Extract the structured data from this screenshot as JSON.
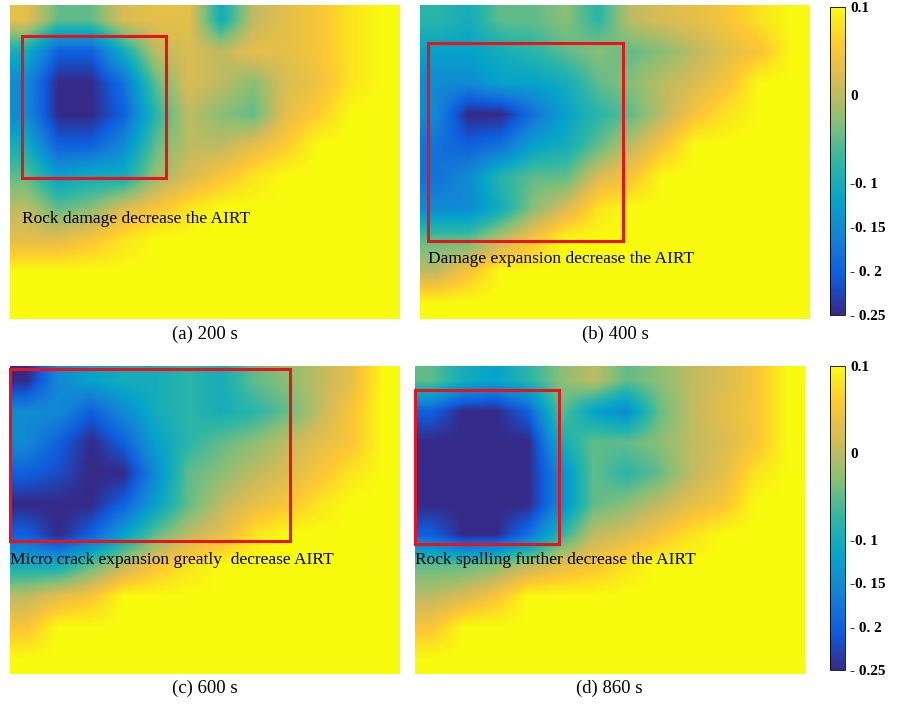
{
  "chart_data": [
    {
      "type": "heatmap",
      "title": "(a) 200 s",
      "annotation": "Rock damage decrease the AIRT",
      "tick_labels": false,
      "cells": [
        [
          0.03,
          -0.05,
          -0.05,
          0.02,
          0.03,
          0.03,
          -0.1,
          0.0,
          0.03,
          0.05,
          0.08,
          0.1
        ],
        [
          -0.1,
          -0.2,
          -0.2,
          -0.1,
          0.0,
          0.02,
          0.0,
          0.03,
          0.03,
          0.05,
          0.08,
          0.1
        ],
        [
          -0.15,
          -0.25,
          -0.25,
          -0.18,
          -0.05,
          0.02,
          0.0,
          -0.03,
          0.02,
          0.04,
          0.08,
          0.1
        ],
        [
          -0.15,
          -0.25,
          -0.25,
          -0.2,
          -0.08,
          0.0,
          -0.03,
          -0.05,
          0.03,
          0.06,
          0.1,
          0.1
        ],
        [
          -0.1,
          -0.2,
          -0.2,
          -0.15,
          -0.05,
          0.0,
          0.0,
          0.03,
          0.06,
          0.1,
          0.1,
          0.1
        ],
        [
          -0.05,
          -0.12,
          -0.1,
          -0.1,
          -0.02,
          0.02,
          0.05,
          0.08,
          0.1,
          0.1,
          0.1,
          0.1
        ],
        [
          0.0,
          -0.05,
          -0.03,
          0.02,
          0.05,
          0.08,
          0.1,
          0.1,
          0.1,
          0.1,
          0.1,
          0.1
        ],
        [
          0.03,
          0.03,
          0.05,
          0.08,
          0.1,
          0.1,
          0.1,
          0.1,
          0.1,
          0.1,
          0.1,
          0.1
        ],
        [
          0.1,
          0.1,
          0.1,
          0.1,
          0.1,
          0.1,
          0.1,
          0.1,
          0.1,
          0.1,
          0.1,
          0.1
        ],
        [
          0.1,
          0.1,
          0.1,
          0.1,
          0.1,
          0.1,
          0.1,
          0.1,
          0.1,
          0.1,
          0.1,
          0.1
        ]
      ]
    },
    {
      "type": "heatmap",
      "title": "(b) 400 s",
      "annotation": "Damage expansion decrease the AIRT",
      "tick_labels": false,
      "cells": [
        [
          -0.08,
          -0.1,
          -0.05,
          -0.05,
          -0.03,
          -0.08,
          0.0,
          0.02,
          0.03,
          0.05,
          0.08,
          0.1
        ],
        [
          -0.12,
          -0.12,
          -0.1,
          -0.08,
          -0.05,
          -0.03,
          -0.05,
          -0.03,
          0.0,
          0.03,
          0.05,
          0.1
        ],
        [
          -0.15,
          -0.15,
          -0.12,
          -0.12,
          -0.1,
          -0.05,
          -0.03,
          0.0,
          0.02,
          0.05,
          0.1,
          0.1
        ],
        [
          -0.15,
          -0.25,
          -0.25,
          -0.18,
          -0.12,
          -0.08,
          -0.05,
          0.0,
          0.05,
          0.08,
          0.1,
          0.1
        ],
        [
          -0.18,
          -0.2,
          -0.18,
          -0.12,
          -0.1,
          -0.05,
          0.0,
          0.05,
          0.1,
          0.1,
          0.1,
          0.1
        ],
        [
          -0.18,
          -0.15,
          -0.08,
          -0.05,
          -0.05,
          0.02,
          0.05,
          0.1,
          0.1,
          0.1,
          0.1,
          0.1
        ],
        [
          -0.15,
          -0.15,
          -0.1,
          -0.03,
          0.02,
          0.08,
          0.1,
          0.1,
          0.1,
          0.1,
          0.1,
          0.1
        ],
        [
          -0.05,
          -0.05,
          0.0,
          0.05,
          0.1,
          0.1,
          0.1,
          0.1,
          0.1,
          0.1,
          0.1,
          0.1
        ],
        [
          0.0,
          0.05,
          0.1,
          0.1,
          0.1,
          0.1,
          0.1,
          0.1,
          0.1,
          0.1,
          0.1,
          0.1
        ],
        [
          0.1,
          0.1,
          0.1,
          0.1,
          0.1,
          0.1,
          0.1,
          0.1,
          0.1,
          0.1,
          0.1,
          0.1
        ]
      ],
      "colorbar": {
        "range": [
          -0.25,
          0.1
        ],
        "ticks": [
          0.1,
          0,
          {
            "value": -0.1,
            "label": "-0. 1"
          },
          {
            "value": -0.15,
            "label": "-0. 15"
          },
          {
            "value": -0.2,
            "label": "- 0. 2"
          },
          {
            "value": -0.25,
            "label": "- 0.25"
          }
        ]
      }
    },
    {
      "type": "heatmap",
      "title": "(c) 600 s",
      "annotation": "Micro crack expansion greatly  decrease AIRT",
      "tick_labels": false,
      "cells": [
        [
          -0.25,
          -0.15,
          -0.12,
          -0.1,
          -0.1,
          -0.08,
          -0.1,
          -0.05,
          -0.03,
          0.0,
          0.03,
          0.1
        ],
        [
          -0.15,
          -0.15,
          -0.2,
          -0.15,
          -0.1,
          -0.08,
          -0.1,
          -0.08,
          -0.05,
          0.0,
          0.05,
          0.1
        ],
        [
          -0.15,
          -0.2,
          -0.25,
          -0.2,
          -0.12,
          -0.08,
          -0.05,
          -0.03,
          0.0,
          0.03,
          0.05,
          0.1
        ],
        [
          -0.2,
          -0.22,
          -0.25,
          -0.25,
          -0.15,
          -0.05,
          -0.03,
          0.0,
          0.02,
          0.05,
          0.08,
          0.1
        ],
        [
          -0.25,
          -0.25,
          -0.25,
          -0.2,
          -0.12,
          -0.05,
          0.0,
          0.03,
          0.05,
          0.08,
          0.1,
          0.1
        ],
        [
          -0.2,
          -0.25,
          -0.2,
          -0.12,
          -0.05,
          0.0,
          0.03,
          0.08,
          0.1,
          0.1,
          0.1,
          0.1
        ],
        [
          -0.1,
          -0.1,
          -0.05,
          0.0,
          0.05,
          0.08,
          0.1,
          0.1,
          0.1,
          0.1,
          0.1,
          0.1
        ],
        [
          0.0,
          0.03,
          0.05,
          0.1,
          0.1,
          0.1,
          0.1,
          0.1,
          0.1,
          0.1,
          0.1,
          0.1
        ],
        [
          0.05,
          0.1,
          0.1,
          0.1,
          0.1,
          0.1,
          0.1,
          0.1,
          0.1,
          0.1,
          0.1,
          0.1
        ],
        [
          0.1,
          0.1,
          0.1,
          0.1,
          0.1,
          0.1,
          0.1,
          0.1,
          0.1,
          0.1,
          0.1,
          0.1
        ]
      ]
    },
    {
      "type": "heatmap",
      "title": "(d) 860 s",
      "annotation": "Rock spalling further decrease the AIRT",
      "tick_labels": false,
      "cells": [
        [
          -0.05,
          -0.1,
          -0.12,
          -0.08,
          -0.03,
          0.0,
          -0.05,
          -0.03,
          0.0,
          0.02,
          0.05,
          0.1
        ],
        [
          -0.2,
          -0.25,
          -0.25,
          -0.2,
          -0.05,
          -0.12,
          -0.15,
          -0.05,
          0.0,
          0.03,
          0.05,
          0.1
        ],
        [
          -0.25,
          -0.25,
          -0.25,
          -0.25,
          -0.1,
          -0.05,
          -0.05,
          -0.03,
          0.0,
          0.02,
          0.05,
          0.1
        ],
        [
          -0.25,
          -0.25,
          -0.25,
          -0.25,
          -0.15,
          -0.05,
          -0.08,
          -0.05,
          0.0,
          0.03,
          0.08,
          0.1
        ],
        [
          -0.25,
          -0.25,
          -0.25,
          -0.25,
          -0.15,
          -0.05,
          -0.03,
          0.0,
          0.03,
          0.05,
          0.1,
          0.1
        ],
        [
          -0.2,
          -0.25,
          -0.25,
          -0.18,
          -0.08,
          0.0,
          0.02,
          0.05,
          0.08,
          0.1,
          0.1,
          0.1
        ],
        [
          -0.05,
          -0.05,
          -0.03,
          0.0,
          0.03,
          0.05,
          0.08,
          0.1,
          0.1,
          0.1,
          0.1,
          0.1
        ],
        [
          0.0,
          0.02,
          0.05,
          0.1,
          0.1,
          0.1,
          0.1,
          0.1,
          0.1,
          0.1,
          0.1,
          0.1
        ],
        [
          0.05,
          0.1,
          0.1,
          0.1,
          0.1,
          0.1,
          0.1,
          0.1,
          0.1,
          0.1,
          0.1,
          0.1
        ],
        [
          0.1,
          0.1,
          0.1,
          0.1,
          0.1,
          0.1,
          0.1,
          0.1,
          0.1,
          0.1,
          0.1,
          0.1
        ]
      ],
      "colorbar": {
        "range": [
          -0.25,
          0.1
        ],
        "ticks": [
          0.1,
          0,
          {
            "value": -0.1,
            "label": "-0. 1"
          },
          {
            "value": -0.15,
            "label": "-0. 15"
          },
          {
            "value": -0.2,
            "label": "- 0. 2"
          },
          {
            "value": -0.25,
            "label": "- 0.25"
          }
        ]
      }
    }
  ]
}
